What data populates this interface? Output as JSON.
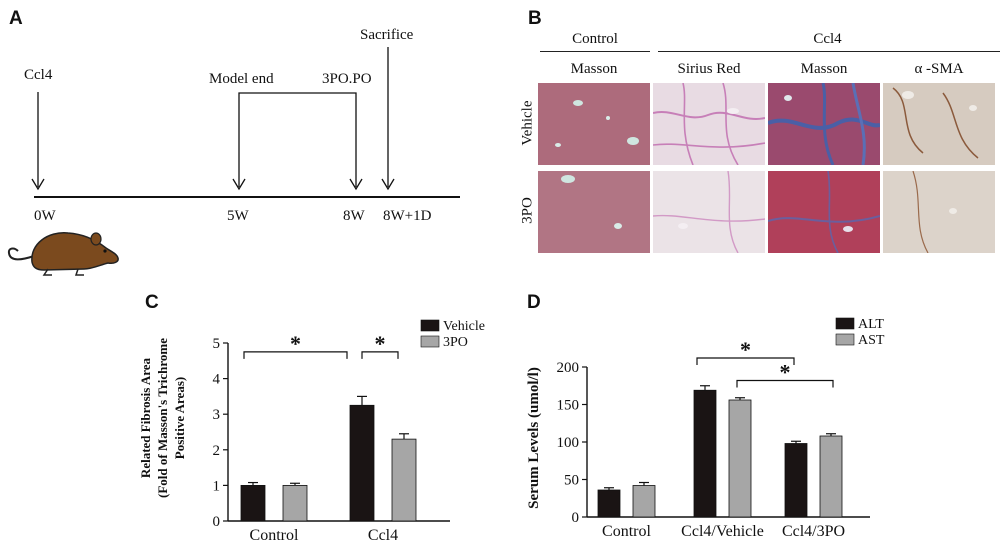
{
  "panels": {
    "a": "A",
    "b": "B",
    "c": "C",
    "d": "D"
  },
  "timeline": {
    "events": [
      {
        "label": "Ccl4",
        "time": "0W"
      },
      {
        "label": "Model end",
        "time": "5W"
      },
      {
        "label": "3PO.PO",
        "time": "8W"
      },
      {
        "label": "Sacrifice",
        "time": "8W+1D"
      }
    ],
    "animal_icon": "rat-icon"
  },
  "histology": {
    "groups": [
      "Control",
      "Ccl4"
    ],
    "stains": [
      "Masson",
      "Sirius Red",
      "Masson",
      "α -SMA"
    ],
    "rows": [
      "Vehicle",
      "3PO"
    ]
  },
  "colors": {
    "vehicle": "#1a1414",
    "treatment": "#a6a6a6",
    "masson_red": "#a9536a",
    "sirius_pink": "#c98fc1",
    "collagen_blue": "#4a5fa6",
    "sma_brown": "#8b5a3c"
  },
  "chart_data": [
    {
      "type": "bar",
      "ylabel": "Related Fibrosis Area (Fold of Masson's Trichrome Positive Areas)",
      "ylabel_lines": [
        "Related Fibrosis Area",
        "(Fold of Masson's Trichrome",
        "Positive Areas)"
      ],
      "categories": [
        "Control",
        "Ccl4"
      ],
      "series": [
        {
          "name": "Vehicle",
          "values": [
            1.0,
            3.25
          ],
          "errors": [
            0.08,
            0.25
          ]
        },
        {
          "name": "3PO",
          "values": [
            1.0,
            2.3
          ],
          "errors": [
            0.06,
            0.15
          ]
        }
      ],
      "ylim": [
        0,
        5
      ],
      "yticks": [
        "0",
        "1",
        "2",
        "3",
        "4",
        "5"
      ],
      "legend": "top-right",
      "significance": [
        "*",
        "*"
      ]
    },
    {
      "type": "bar",
      "ylabel": "Serum Levels (umol/l)",
      "categories": [
        "Control",
        "Ccl4/Vehicle",
        "Ccl4/3PO"
      ],
      "series": [
        {
          "name": "ALT",
          "values": [
            36,
            169,
            98
          ],
          "errors": [
            3,
            6,
            3
          ]
        },
        {
          "name": "AST",
          "values": [
            42,
            156,
            108
          ],
          "errors": [
            4,
            3,
            3
          ]
        }
      ],
      "ylim": [
        0,
        200
      ],
      "yticks": [
        "0",
        "50",
        "100",
        "150",
        "200"
      ],
      "legend": "top-right",
      "significance": [
        "*",
        "*"
      ]
    }
  ]
}
